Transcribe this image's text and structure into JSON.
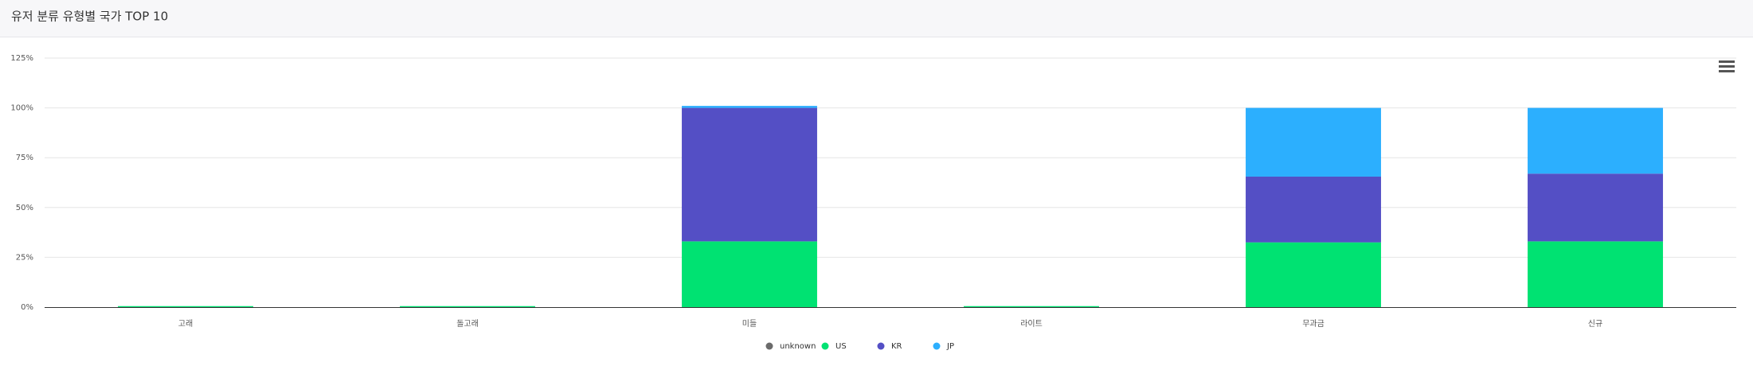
{
  "chart_data": {
    "type": "stacked_bar",
    "title": "유저 분류 유형별 국가 TOP 10",
    "categories": [
      "고래",
      "돌고래",
      "미들",
      "라이트",
      "무과금",
      "신규"
    ],
    "series": [
      {
        "name": "unknown",
        "color": "#6b6b6b",
        "values": [
          0,
          0,
          0,
          0,
          0,
          0
        ]
      },
      {
        "name": "US",
        "color": "#00e272",
        "values": [
          0.5,
          0.5,
          33,
          0.5,
          32.5,
          33
        ]
      },
      {
        "name": "KR",
        "color": "#544fc5",
        "values": [
          0,
          0,
          67,
          0,
          33,
          34
        ]
      },
      {
        "name": "JP",
        "color": "#2caffe",
        "values": [
          0,
          0,
          1,
          0,
          34.5,
          33
        ]
      }
    ],
    "ylim": [
      0,
      125
    ],
    "yticks": [
      {
        "value": 0,
        "label": "0%"
      },
      {
        "value": 25,
        "label": "25%"
      },
      {
        "value": 50,
        "label": "50%"
      },
      {
        "value": 75,
        "label": "75%"
      },
      {
        "value": 100,
        "label": "100%"
      },
      {
        "value": 125,
        "label": "125%"
      }
    ],
    "grid": true
  }
}
